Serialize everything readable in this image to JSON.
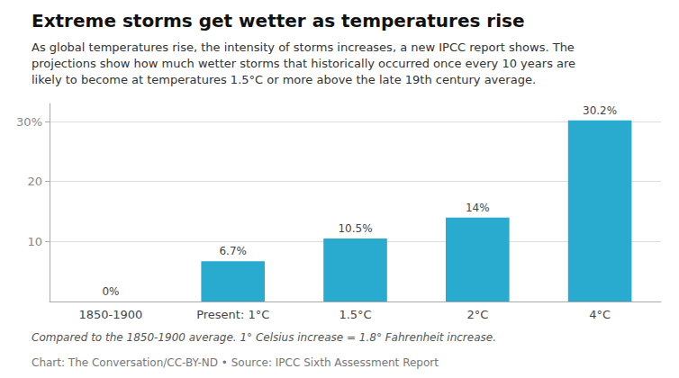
{
  "chart_data": {
    "type": "bar",
    "title": "Extreme storms get wetter as temperatures rise",
    "subtitle": "As global temperatures rise, the intensity of storms increases, a new IPCC report shows. The\nprojections show how much wetter storms that historically occurred once every 10 years are\nlikely to become at temperatures 1.5°C or more above the late 19th century average.",
    "annotations": [
      "Compared to the 1850-1900 average. 1° Celsius increase = 1.8° Fahrenheit increase.",
      "Chart: The Conversation/CC-BY-ND • Source: IPCC Sixth Assessment Report"
    ],
    "categories": [
      "1850-1900",
      "Present: 1°C",
      "1.5°C",
      "2°C",
      "4°C"
    ],
    "values": [
      0,
      6.7,
      10.5,
      14,
      30.2
    ],
    "value_labels": [
      "0%",
      "6.7%",
      "10.5%",
      "14%",
      "30.2%"
    ],
    "data_labels": true,
    "color": "#29ABD0",
    "ylim": [
      0,
      33
    ],
    "yticks": [
      10,
      20,
      {
        "value": 30,
        "label": "30%"
      }
    ],
    "grid": true
  }
}
